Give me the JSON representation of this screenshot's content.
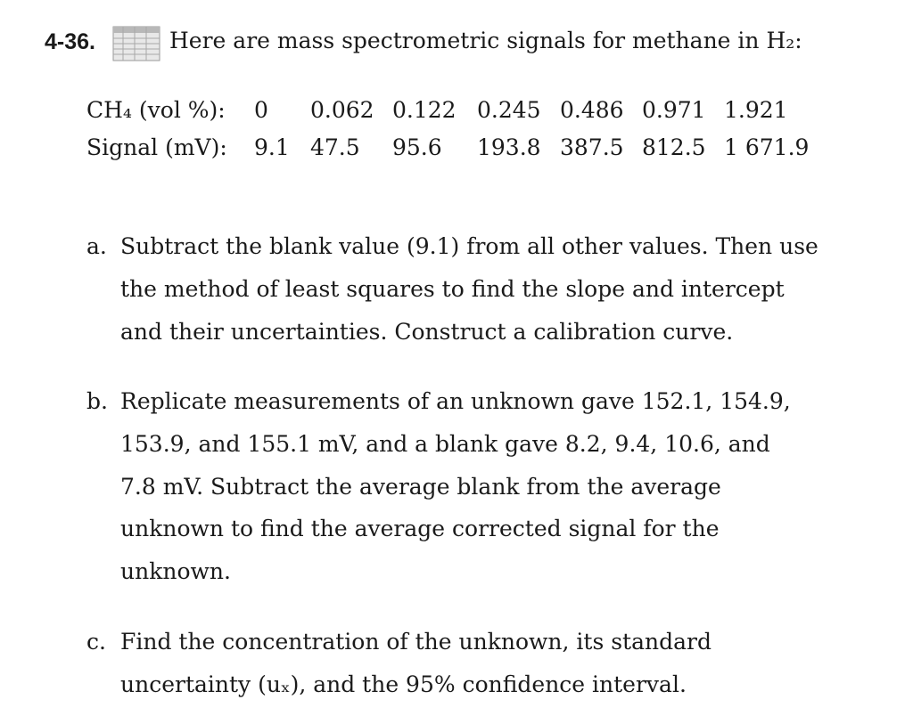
{
  "problem": {
    "number": "4-36.",
    "intro": "Here are mass spectrometric signals for methane in H₂:"
  },
  "table": {
    "rows": [
      [
        "CH₄ (vol %):",
        "0",
        "0.062",
        "0.122",
        "0.245",
        "0.486",
        "0.971",
        "1.921"
      ],
      [
        "Signal (mV):",
        "9.1",
        "47.5",
        "95.6",
        "193.8",
        "387.5",
        "812.5",
        "1 671.9"
      ]
    ]
  },
  "parts": [
    {
      "label": "a.",
      "lines": [
        "Subtract the blank value (9.1) from all other values. Then use",
        "the method of least squares to find the slope and intercept",
        "and their uncertainties. Construct a calibration curve."
      ]
    },
    {
      "label": "b.",
      "lines": [
        "Replicate measurements of an unknown gave 152.1, 154.9,",
        "153.9, and 155.1 mV, and a blank gave 8.2, 9.4, 10.6, and",
        "7.8 mV. Subtract the average blank from the average",
        "unknown to find the average corrected signal for the",
        "unknown."
      ]
    },
    {
      "label": "c.",
      "lines": [
        "Find the concentration of the unknown, its standard",
        "uncertainty (uₓ), and the 95% confidence interval."
      ]
    }
  ]
}
